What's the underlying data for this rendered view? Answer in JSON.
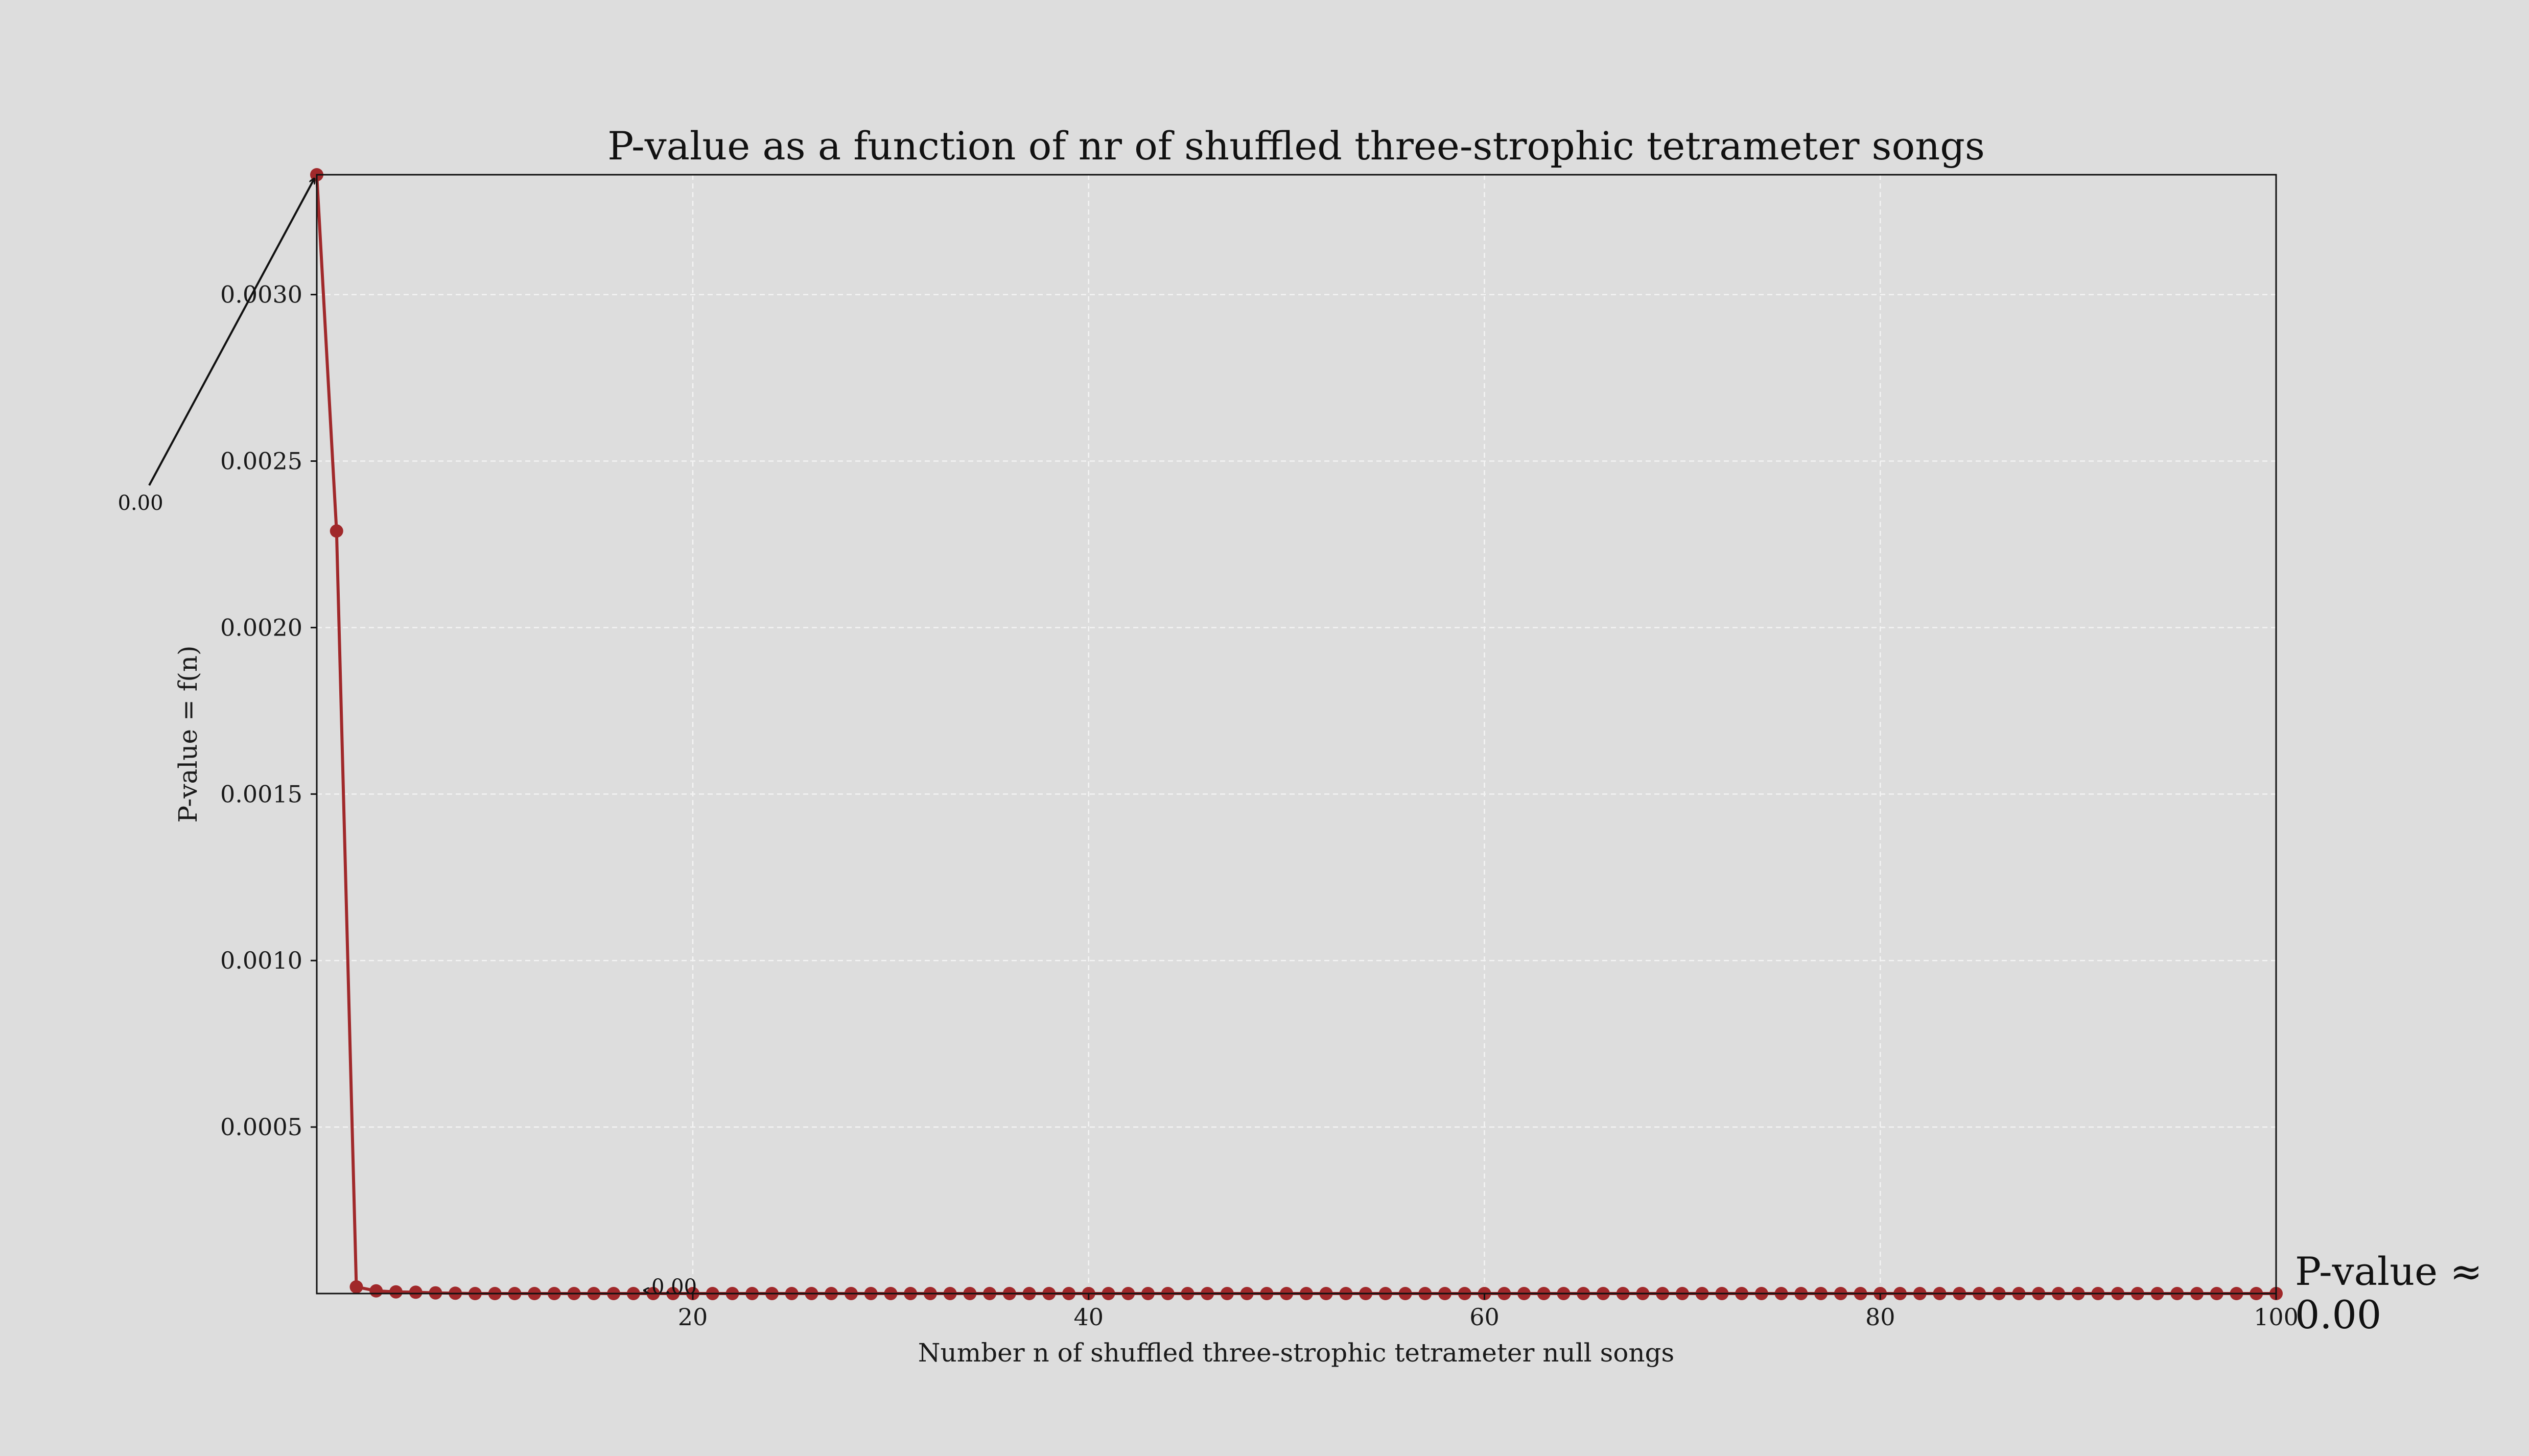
{
  "chart_data": {
    "type": "line",
    "title": "P-value as a function of nr of shuffled three-strophic tetrameter songs",
    "xlabel": "Number n of shuffled three-strophic tetrameter null songs",
    "ylabel": "P-value = f(n)",
    "xlim": [
      1,
      100
    ],
    "ylim": [
      0,
      0.00336
    ],
    "xticks": [
      20,
      40,
      60,
      80,
      100
    ],
    "yticks": [
      0.0005,
      0.001,
      0.0015,
      0.002,
      0.0025,
      0.003
    ],
    "ytick_labels": [
      "0.0005",
      "0.0010",
      "0.0015",
      "0.0020",
      "0.0025",
      "0.0030"
    ],
    "grid": true,
    "series_color": "#a0282a",
    "series": [
      {
        "x": [
          1,
          2,
          3,
          4,
          5,
          6,
          7,
          8,
          9,
          10,
          11,
          12,
          13,
          14,
          15,
          16,
          17,
          18,
          19,
          20,
          21,
          22,
          23,
          24,
          25,
          26,
          27,
          28,
          29,
          30,
          31,
          32,
          33,
          34,
          35,
          36,
          37,
          38,
          39,
          40,
          41,
          42,
          43,
          44,
          45,
          46,
          47,
          48,
          49,
          50,
          51,
          52,
          53,
          54,
          55,
          56,
          57,
          58,
          59,
          60,
          61,
          62,
          63,
          64,
          65,
          66,
          67,
          68,
          69,
          70,
          71,
          72,
          73,
          74,
          75,
          76,
          77,
          78,
          79,
          80,
          81,
          82,
          83,
          84,
          85,
          86,
          87,
          88,
          89,
          90,
          91,
          92,
          93,
          94,
          95,
          96,
          97,
          98,
          99,
          100
        ],
        "y": [
          0.00336,
          0.00229,
          2e-05,
          8e-06,
          5e-06,
          4e-06,
          2e-06,
          1e-06,
          0,
          0,
          0,
          0,
          0,
          0,
          0,
          0,
          0,
          0,
          0,
          0,
          0,
          0,
          0,
          0,
          0,
          0,
          0,
          0,
          0,
          0,
          0,
          0,
          0,
          0,
          0,
          0,
          0,
          0,
          0,
          0,
          0,
          0,
          0,
          0,
          0,
          0,
          0,
          0,
          0,
          0,
          0,
          0,
          0,
          0,
          0,
          0,
          0,
          0,
          0,
          0,
          0,
          0,
          0,
          0,
          0,
          0,
          0,
          0,
          0,
          0,
          0,
          0,
          0,
          0,
          0,
          0,
          0,
          0,
          0,
          0,
          0,
          0,
          0,
          0,
          0,
          0,
          0,
          0,
          0,
          0,
          0,
          0,
          0,
          0,
          0,
          0,
          0,
          0,
          0,
          0
        ]
      }
    ],
    "annotations": [
      {
        "text": "0.00",
        "x": 1,
        "y": 0.00336
      },
      {
        "text": "0.00",
        "x": 16,
        "y": 0
      }
    ],
    "final_annotation": {
      "line1": "P-value ≈",
      "line2": "0.00"
    }
  }
}
